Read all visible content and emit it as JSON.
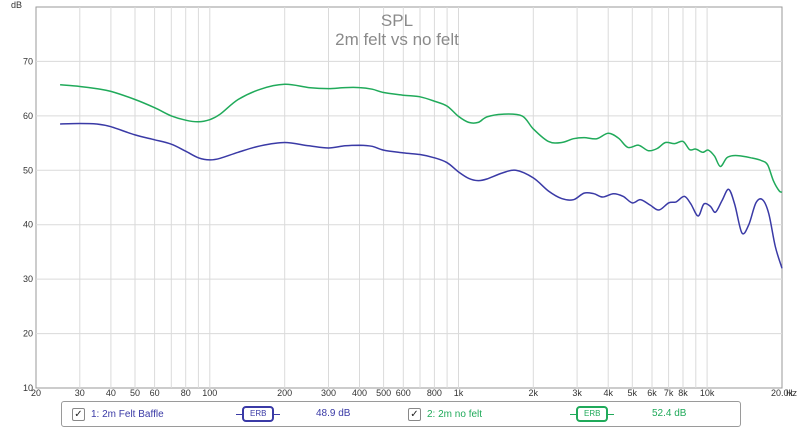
{
  "chart_data": {
    "type": "line",
    "title": "SPL",
    "subtitle": "2m felt vs no felt",
    "ylabel": "dB",
    "xlabel": "Hz",
    "xscale": "log",
    "xlim": [
      20,
      20000
    ],
    "ylim": [
      10,
      80
    ],
    "yticks": [
      10,
      20,
      30,
      40,
      50,
      60,
      70
    ],
    "xtick_values": [
      20,
      30,
      40,
      50,
      60,
      80,
      100,
      200,
      300,
      400,
      500,
      600,
      800,
      1000,
      2000,
      3000,
      4000,
      5000,
      6000,
      7000,
      8000,
      10000,
      20000
    ],
    "xtick_labels": [
      "20",
      "30",
      "40",
      "50",
      "60",
      "80",
      "100",
      "200",
      "300",
      "400",
      "500",
      "600",
      "800",
      "1k",
      "2k",
      "3k",
      "4k",
      "5k",
      "6k",
      "7k",
      "8k",
      "10k",
      "20.0k"
    ],
    "grid": true,
    "legend_position": "bottom",
    "series": [
      {
        "name": "1: 2m Felt Baffle",
        "color": "#3a3aa6",
        "points": [
          [
            25,
            58.5
          ],
          [
            30,
            58.6
          ],
          [
            35,
            58.5
          ],
          [
            40,
            58
          ],
          [
            50,
            56.5
          ],
          [
            60,
            55.6
          ],
          [
            70,
            54.8
          ],
          [
            80,
            53.5
          ],
          [
            90,
            52.3
          ],
          [
            100,
            51.9
          ],
          [
            110,
            52.2
          ],
          [
            130,
            53.3
          ],
          [
            160,
            54.5
          ],
          [
            200,
            55.1
          ],
          [
            250,
            54.5
          ],
          [
            300,
            54.1
          ],
          [
            350,
            54.5
          ],
          [
            400,
            54.6
          ],
          [
            450,
            54.4
          ],
          [
            500,
            53.7
          ],
          [
            600,
            53.2
          ],
          [
            700,
            52.9
          ],
          [
            800,
            52.3
          ],
          [
            900,
            51.4
          ],
          [
            1000,
            49.7
          ],
          [
            1100,
            48.5
          ],
          [
            1200,
            48.1
          ],
          [
            1300,
            48.4
          ],
          [
            1500,
            49.5
          ],
          [
            1700,
            50.0
          ],
          [
            2000,
            48.6
          ],
          [
            2300,
            46.2
          ],
          [
            2600,
            44.8
          ],
          [
            2900,
            44.6
          ],
          [
            3200,
            45.8
          ],
          [
            3500,
            45.7
          ],
          [
            3800,
            45.1
          ],
          [
            4200,
            45.7
          ],
          [
            4600,
            45.2
          ],
          [
            5000,
            44.0
          ],
          [
            5400,
            44.6
          ],
          [
            5900,
            43.6
          ],
          [
            6400,
            42.7
          ],
          [
            7000,
            44.0
          ],
          [
            7500,
            44.2
          ],
          [
            8100,
            45.2
          ],
          [
            8600,
            43.8
          ],
          [
            9200,
            41.6
          ],
          [
            9700,
            43.8
          ],
          [
            10300,
            43.4
          ],
          [
            10800,
            42.3
          ],
          [
            11500,
            44.5
          ],
          [
            12200,
            46.5
          ],
          [
            12900,
            43.8
          ],
          [
            13800,
            38.5
          ],
          [
            14700,
            40.0
          ],
          [
            15700,
            44.0
          ],
          [
            16700,
            44.6
          ],
          [
            17700,
            42.0
          ],
          [
            18800,
            36.0
          ],
          [
            20000,
            32.0
          ]
        ]
      },
      {
        "name": "2: 2m no felt",
        "color": "#20aa5a",
        "points": [
          [
            25,
            65.7
          ],
          [
            30,
            65.4
          ],
          [
            35,
            65.0
          ],
          [
            40,
            64.5
          ],
          [
            50,
            63.0
          ],
          [
            60,
            61.5
          ],
          [
            70,
            60.0
          ],
          [
            80,
            59.2
          ],
          [
            90,
            58.9
          ],
          [
            100,
            59.3
          ],
          [
            110,
            60.3
          ],
          [
            130,
            63.0
          ],
          [
            160,
            64.9
          ],
          [
            200,
            65.8
          ],
          [
            250,
            65.2
          ],
          [
            300,
            65.0
          ],
          [
            350,
            65.2
          ],
          [
            400,
            65.2
          ],
          [
            450,
            64.9
          ],
          [
            500,
            64.3
          ],
          [
            600,
            63.8
          ],
          [
            700,
            63.5
          ],
          [
            800,
            62.7
          ],
          [
            900,
            61.8
          ],
          [
            1000,
            59.9
          ],
          [
            1100,
            58.8
          ],
          [
            1200,
            58.8
          ],
          [
            1300,
            59.8
          ],
          [
            1500,
            60.3
          ],
          [
            1800,
            60.0
          ],
          [
            2000,
            57.6
          ],
          [
            2300,
            55.3
          ],
          [
            2600,
            55.1
          ],
          [
            2900,
            55.8
          ],
          [
            3200,
            56.0
          ],
          [
            3600,
            55.8
          ],
          [
            4000,
            56.8
          ],
          [
            4400,
            55.9
          ],
          [
            4800,
            54.2
          ],
          [
            5300,
            54.6
          ],
          [
            5800,
            53.6
          ],
          [
            6300,
            54.0
          ],
          [
            6800,
            55.1
          ],
          [
            7400,
            54.9
          ],
          [
            8000,
            55.3
          ],
          [
            8500,
            53.8
          ],
          [
            9000,
            53.9
          ],
          [
            9600,
            53.3
          ],
          [
            10100,
            53.7
          ],
          [
            10700,
            52.6
          ],
          [
            11300,
            50.7
          ],
          [
            12000,
            52.3
          ],
          [
            12800,
            52.7
          ],
          [
            13800,
            52.6
          ],
          [
            15000,
            52.3
          ],
          [
            16500,
            51.8
          ],
          [
            17500,
            51.0
          ],
          [
            18500,
            48.0
          ],
          [
            19500,
            46.2
          ],
          [
            20000,
            46.0
          ]
        ]
      }
    ]
  },
  "legend": {
    "items": [
      {
        "checked": "✓",
        "label": "1: 2m Felt Baffle",
        "smoothing": "ERB",
        "value": "48.9 dB",
        "color": "#3a3aa6"
      },
      {
        "checked": "✓",
        "label": "2: 2m no felt",
        "smoothing": "ERB",
        "value": "52.4 dB",
        "color": "#20aa5a"
      }
    ]
  }
}
